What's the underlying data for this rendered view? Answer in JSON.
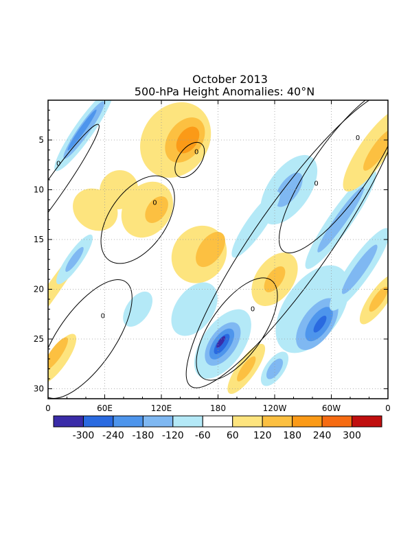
{
  "chart_data": {
    "type": "heatmap",
    "title": "October 2013",
    "subtitle": "500-hPa Height Anomalies: 40°N",
    "x_ticks": [
      "0",
      "60E",
      "120E",
      "180",
      "120W",
      "60W",
      "0"
    ],
    "x_values": [
      0,
      60,
      120,
      180,
      240,
      300,
      360
    ],
    "y_ticks": [
      "5",
      "10",
      "15",
      "20",
      "25",
      "30"
    ],
    "y_values": [
      5,
      10,
      15,
      20,
      25,
      30
    ],
    "xlim": [
      0,
      360
    ],
    "ylim": [
      1,
      31
    ],
    "y_inverted": true,
    "grid": true,
    "contour_label": "0",
    "colorbar": {
      "labels": [
        "-300",
        "-240",
        "-180",
        "-120",
        "-60",
        "60",
        "120",
        "180",
        "240",
        "300"
      ],
      "colors": [
        "#3a2ca8",
        "#2a6ae0",
        "#4e95ec",
        "#7fb8f2",
        "#b4e9f7",
        "#ffffff",
        "#fde47e",
        "#fcc041",
        "#fb9a17",
        "#f66b12",
        "#c00f0f"
      ]
    },
    "features": [
      {
        "type": "positive",
        "level": 60,
        "lon": 5,
        "day": 20,
        "rx": 7,
        "ry": 6
      },
      {
        "type": "positive",
        "level": 60,
        "lon": 10,
        "day": 27,
        "rx": 10,
        "ry": 3
      },
      {
        "type": "positive",
        "level": 120,
        "lon": 8,
        "day": 26.5,
        "rx": 6,
        "ry": 2
      },
      {
        "type": "negative",
        "level": -60,
        "lon": 38,
        "day": 4,
        "rx": 10,
        "ry": 5
      },
      {
        "type": "negative",
        "level": -120,
        "lon": 38,
        "day": 4,
        "rx": 6,
        "ry": 3.5
      },
      {
        "type": "negative",
        "level": -180,
        "lon": 36,
        "day": 4,
        "rx": 3,
        "ry": 2.5
      },
      {
        "type": "negative",
        "level": -60,
        "lon": 28,
        "day": 17,
        "rx": 8,
        "ry": 3
      },
      {
        "type": "negative",
        "level": -120,
        "lon": 28,
        "day": 17,
        "rx": 4,
        "ry": 1.5
      },
      {
        "type": "positive",
        "level": 60,
        "lon": 135,
        "day": 5,
        "rx": 35,
        "ry": 4
      },
      {
        "type": "positive",
        "level": 120,
        "lon": 145,
        "day": 5,
        "rx": 18,
        "ry": 2.5
      },
      {
        "type": "positive",
        "level": 180,
        "lon": 148,
        "day": 5,
        "rx": 10,
        "ry": 1.5
      },
      {
        "type": "positive",
        "level": 60,
        "lon": 160,
        "day": 16.5,
        "rx": 28,
        "ry": 3
      },
      {
        "type": "positive",
        "level": 120,
        "lon": 172,
        "day": 16,
        "rx": 12,
        "ry": 2
      },
      {
        "type": "negative",
        "level": -60,
        "lon": 185,
        "day": 25.5,
        "rx": 22,
        "ry": 4
      },
      {
        "type": "negative",
        "level": -120,
        "lon": 185,
        "day": 25.5,
        "rx": 14,
        "ry": 2.5
      },
      {
        "type": "negative",
        "level": -180,
        "lon": 184,
        "day": 25.5,
        "rx": 9,
        "ry": 1.8
      },
      {
        "type": "negative",
        "level": -240,
        "lon": 184,
        "day": 25.5,
        "rx": 5,
        "ry": 1.2
      },
      {
        "type": "negative",
        "level": -300,
        "lon": 183,
        "day": 25.3,
        "rx": 2.5,
        "ry": 0.7
      },
      {
        "type": "negative",
        "level": -60,
        "lon": 280,
        "day": 22,
        "rx": 30,
        "ry": 5
      },
      {
        "type": "negative",
        "level": -120,
        "lon": 285,
        "day": 23.5,
        "rx": 16,
        "ry": 3
      },
      {
        "type": "negative",
        "level": -180,
        "lon": 287,
        "day": 23.5,
        "rx": 10,
        "ry": 2
      },
      {
        "type": "negative",
        "level": -240,
        "lon": 288,
        "day": 23.5,
        "rx": 4,
        "ry": 1
      },
      {
        "type": "negative",
        "level": -60,
        "lon": 255,
        "day": 10,
        "rx": 22,
        "ry": 4
      },
      {
        "type": "negative",
        "level": -120,
        "lon": 255,
        "day": 10,
        "rx": 10,
        "ry": 2
      },
      {
        "type": "negative",
        "level": -60,
        "lon": 310,
        "day": 13,
        "rx": 12,
        "ry": 6
      },
      {
        "type": "negative",
        "level": -120,
        "lon": 310,
        "day": 13,
        "rx": 6,
        "ry": 4
      },
      {
        "type": "negative",
        "level": -60,
        "lon": 330,
        "day": 18,
        "rx": 12,
        "ry": 5
      },
      {
        "type": "negative",
        "level": -120,
        "lon": 330,
        "day": 18,
        "rx": 6,
        "ry": 3
      },
      {
        "type": "positive",
        "level": 60,
        "lon": 345,
        "day": 6,
        "rx": 15,
        "ry": 5
      },
      {
        "type": "positive",
        "level": 120,
        "lon": 350,
        "day": 6,
        "rx": 7,
        "ry": 2.5
      },
      {
        "type": "positive",
        "level": 60,
        "lon": 350,
        "day": 21,
        "rx": 10,
        "ry": 3
      },
      {
        "type": "positive",
        "level": 120,
        "lon": 350,
        "day": 21,
        "rx": 5,
        "ry": 1.5
      },
      {
        "type": "positive",
        "level": 60,
        "lon": 210,
        "day": 28,
        "rx": 10,
        "ry": 3
      },
      {
        "type": "positive",
        "level": 120,
        "lon": 210,
        "day": 28,
        "rx": 5,
        "ry": 1.5
      },
      {
        "type": "negative",
        "level": -60,
        "lon": 155,
        "day": 22,
        "rx": 20,
        "ry": 3
      },
      {
        "type": "positive",
        "level": 60,
        "lon": 105,
        "day": 12,
        "rx": 25,
        "ry": 3
      },
      {
        "type": "positive",
        "level": 120,
        "lon": 115,
        "day": 12,
        "rx": 10,
        "ry": 1.5
      },
      {
        "type": "negative",
        "level": -60,
        "lon": 95,
        "day": 22,
        "rx": 12,
        "ry": 2
      },
      {
        "type": "negative",
        "level": -60,
        "lon": 220,
        "day": 13.5,
        "rx": 10,
        "ry": 4
      },
      {
        "type": "positive",
        "level": 60,
        "lon": 240,
        "day": 19,
        "rx": 20,
        "ry": 3
      },
      {
        "type": "positive",
        "level": 120,
        "lon": 240,
        "day": 19,
        "rx": 8,
        "ry": 1.5
      },
      {
        "type": "negative",
        "level": -60,
        "lon": 240,
        "day": 28,
        "rx": 10,
        "ry": 2
      },
      {
        "type": "negative",
        "level": -120,
        "lon": 240,
        "day": 28,
        "rx": 6,
        "ry": 1.2
      },
      {
        "type": "positive",
        "level": 60,
        "lon": 75,
        "day": 10,
        "rx": 20,
        "ry": 2
      },
      {
        "type": "positive",
        "level": 60,
        "lon": 50,
        "day": 12,
        "rx": 25,
        "ry": 2
      }
    ],
    "zero_contours": [
      {
        "lon": 5,
        "day": 10,
        "rx": 10,
        "ry": 8
      },
      {
        "lon": 150,
        "day": 7,
        "rx": 12,
        "ry": 2
      },
      {
        "lon": 95,
        "day": 13,
        "rx": 30,
        "ry": 5
      },
      {
        "lon": 40,
        "day": 25,
        "rx": 30,
        "ry": 7
      },
      {
        "lon": 200,
        "day": 24,
        "rx": 28,
        "ry": 6
      },
      {
        "lon": 260,
        "day": 15,
        "rx": 40,
        "ry": 18
      },
      {
        "lon": 310,
        "day": 8,
        "rx": 30,
        "ry": 10
      }
    ]
  }
}
